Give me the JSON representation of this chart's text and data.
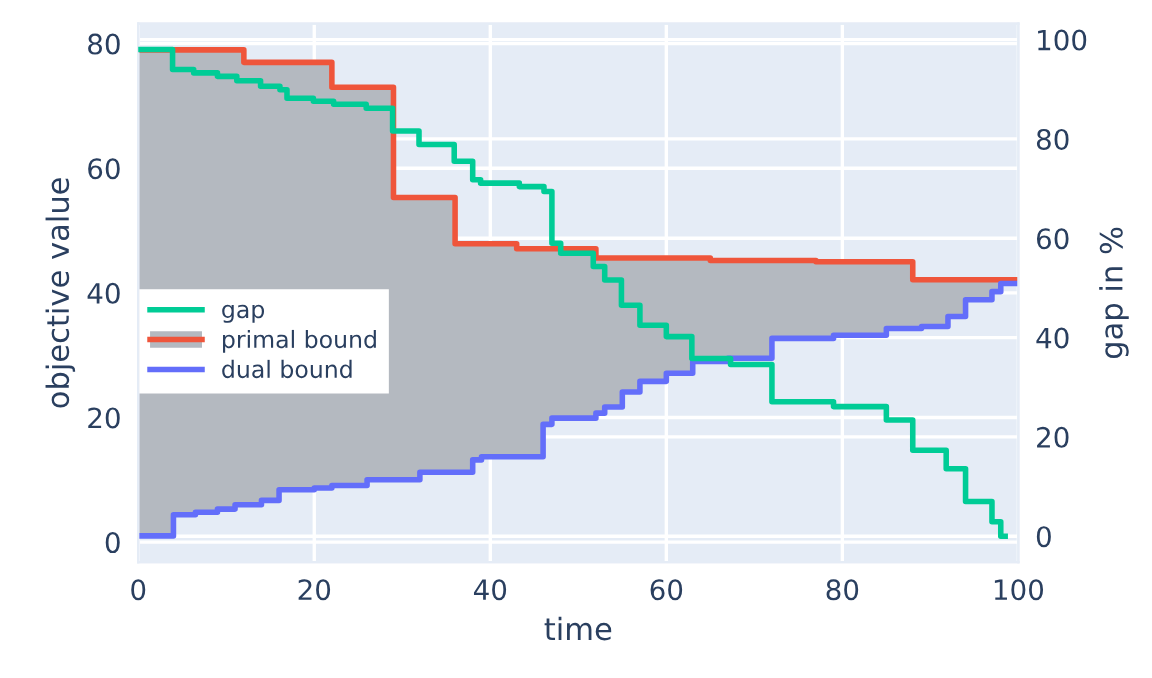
{
  "chart_data": {
    "type": "step",
    "xlabel": "time",
    "ylabel": "objective value",
    "y2label": "gap in %",
    "x": [
      0,
      4,
      6.5,
      9,
      11,
      12,
      14,
      16,
      20,
      22,
      26,
      29,
      32,
      36,
      38,
      39,
      43,
      46,
      47,
      52,
      53,
      55,
      57,
      60,
      63,
      65,
      67,
      72,
      77,
      79,
      85,
      88,
      89,
      92,
      94,
      97,
      98,
      100
    ],
    "series": [
      {
        "name": "gap",
        "color": "#00cc96",
        "axis": "y2",
        "x": [
          0,
          3.9,
          6.3,
          9,
          11.2,
          13.9,
          16.1,
          16.9,
          19.9,
          22.2,
          25.9,
          28.9,
          31.9,
          35.9,
          38,
          38.9,
          43.3,
          46.1,
          47,
          48,
          51.7,
          53,
          54.9,
          57,
          60,
          62.9,
          67.3,
          72,
          79,
          85,
          88,
          91.8,
          94,
          97,
          98,
          98.5
        ],
        "values": [
          98,
          94,
          93.3,
          92.6,
          91.7,
          90.6,
          89.9,
          88.2,
          87.6,
          87,
          86.2,
          81.6,
          78.9,
          75.5,
          71.8,
          71.1,
          70.4,
          69.4,
          59,
          57,
          54.3,
          51.6,
          46.5,
          42.5,
          40.2,
          35.8,
          34.6,
          27.1,
          26.1,
          23.4,
          17.3,
          13.6,
          7,
          2.9,
          0,
          0
        ]
      },
      {
        "name": "primal bound",
        "color": "#ef553b",
        "values": [
          79,
          79,
          79,
          79,
          79,
          77,
          77,
          77,
          77,
          73,
          73,
          55.3,
          55.3,
          47.9,
          47.9,
          47.9,
          47.1,
          47.1,
          47.1,
          45.6,
          45.6,
          45.6,
          45.6,
          45.6,
          45.6,
          45.2,
          45.2,
          45.2,
          45,
          45,
          45,
          42.1,
          42.1,
          42.1,
          42.1,
          42.1,
          42.1,
          42.1
        ],
        "lower": [
          1,
          4.4,
          4.8,
          5.3,
          6,
          6,
          6.7,
          8.4,
          8.7,
          9.1,
          10,
          10,
          11.2,
          11.2,
          13.2,
          13.7,
          13.7,
          18.9,
          19.9,
          20.7,
          21.7,
          24.1,
          25.8,
          27.1,
          29,
          29,
          29.5,
          32.7,
          32.7,
          33.2,
          34.3,
          34.3,
          34.6,
          36.2,
          38.9,
          40.2,
          41.5,
          41.5
        ],
        "upper": [
          79,
          79,
          79,
          79,
          79,
          77,
          77,
          77,
          77,
          73,
          73,
          55.3,
          55.3,
          47.9,
          47.9,
          47.9,
          47.1,
          47.1,
          47.1,
          45.6,
          45.6,
          45.6,
          45.6,
          45.6,
          45.6,
          45.2,
          45.2,
          45.2,
          45,
          45,
          45,
          42.1,
          42.1,
          42.1,
          42.1,
          42.1,
          42.1,
          42.1
        ]
      },
      {
        "name": "dual bound",
        "color": "#636efa",
        "values": [
          1,
          4.4,
          4.8,
          5.3,
          6,
          6,
          6.7,
          8.4,
          8.7,
          9.1,
          10,
          10,
          11.2,
          11.2,
          13.2,
          13.7,
          13.7,
          18.9,
          19.9,
          20.7,
          21.7,
          24.1,
          25.8,
          27.1,
          29,
          29,
          29.5,
          32.7,
          32.7,
          33.2,
          34.3,
          34.3,
          34.6,
          36.2,
          38.9,
          40.2,
          41.5,
          41.5
        ]
      }
    ],
    "xlim": [
      0,
      100
    ],
    "xticks": [
      0,
      20,
      40,
      60,
      80,
      100
    ],
    "ylim": [
      -3.2,
      83.2
    ],
    "yticks": [
      0,
      20,
      40,
      60,
      80
    ],
    "y2lim": [
      -5.2,
      103.2
    ],
    "y2ticks": [
      0,
      20,
      40,
      60,
      80,
      100
    ],
    "grid": true,
    "legend": "left"
  }
}
